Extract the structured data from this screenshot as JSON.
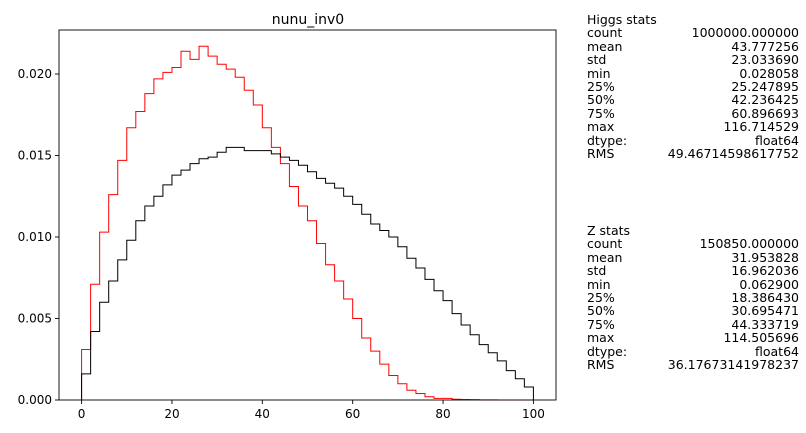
{
  "chart_data": {
    "type": "histogram",
    "title": "nunu_inv0",
    "xlim": [
      -5,
      105
    ],
    "ylim": [
      0,
      0.0227
    ],
    "xticks": [
      0,
      20,
      40,
      60,
      80,
      100
    ],
    "yticks": [
      0.0,
      0.005,
      0.01,
      0.015,
      0.02
    ],
    "ytick_labels": [
      "0.000",
      "0.005",
      "0.010",
      "0.015",
      "0.020"
    ],
    "bin_edges": [
      0,
      2,
      4,
      6,
      8,
      10,
      12,
      14,
      16,
      18,
      20,
      22,
      24,
      26,
      28,
      30,
      32,
      34,
      36,
      38,
      40,
      42,
      44,
      46,
      48,
      50,
      52,
      54,
      56,
      58,
      60,
      62,
      64,
      66,
      68,
      70,
      72,
      74,
      76,
      78,
      80,
      82,
      84,
      86,
      88,
      90,
      92,
      94,
      96,
      98,
      100
    ],
    "series": [
      {
        "color": "#ff0000",
        "values": [
          0.0031,
          0.0071,
          0.0103,
          0.0126,
          0.0147,
          0.0167,
          0.0177,
          0.0188,
          0.0197,
          0.0201,
          0.0204,
          0.0214,
          0.0209,
          0.0217,
          0.0211,
          0.0206,
          0.0203,
          0.0198,
          0.019,
          0.0181,
          0.0167,
          0.0155,
          0.0145,
          0.0131,
          0.0119,
          0.011,
          0.0096,
          0.0083,
          0.0073,
          0.0062,
          0.005,
          0.0038,
          0.003,
          0.0022,
          0.0015,
          0.001,
          0.0006,
          0.0004,
          0.0002,
          0.0001,
          0.0001,
          5e-05,
          3e-05,
          2e-05,
          1e-05,
          1e-05,
          0.0,
          0.0,
          0.0,
          0.0
        ]
      },
      {
        "color": "#000000",
        "values": [
          0.0016,
          0.0042,
          0.006,
          0.0073,
          0.0086,
          0.0098,
          0.011,
          0.0119,
          0.0125,
          0.0132,
          0.0138,
          0.0141,
          0.0145,
          0.0148,
          0.0149,
          0.0152,
          0.0155,
          0.0155,
          0.0153,
          0.0153,
          0.0153,
          0.0151,
          0.0149,
          0.0147,
          0.0144,
          0.014,
          0.0136,
          0.0133,
          0.013,
          0.0125,
          0.012,
          0.0114,
          0.0108,
          0.0104,
          0.01,
          0.0094,
          0.0087,
          0.0081,
          0.0074,
          0.0067,
          0.0061,
          0.0053,
          0.0046,
          0.004,
          0.0034,
          0.0029,
          0.0024,
          0.0018,
          0.0013,
          0.0008
        ]
      }
    ]
  },
  "stats": [
    {
      "title": "Higgs stats",
      "rows": [
        {
          "k": "count",
          "v": "1000000.000000"
        },
        {
          "k": "mean",
          "v": "43.777256"
        },
        {
          "k": "std",
          "v": "23.033690"
        },
        {
          "k": "min",
          "v": "0.028058"
        },
        {
          "k": "25%",
          "v": "25.247895"
        },
        {
          "k": "50%",
          "v": "42.236425"
        },
        {
          "k": "75%",
          "v": "60.896693"
        },
        {
          "k": "max",
          "v": "116.714529"
        },
        {
          "k": "dtype:",
          "v": "float64"
        },
        {
          "k": "RMS",
          "v": "49.46714598617752"
        }
      ]
    },
    {
      "title": "Z stats",
      "rows": [
        {
          "k": "count",
          "v": "150850.000000"
        },
        {
          "k": "mean",
          "v": "31.953828"
        },
        {
          "k": "std",
          "v": "16.962036"
        },
        {
          "k": "min",
          "v": "0.062900"
        },
        {
          "k": "25%",
          "v": "18.386430"
        },
        {
          "k": "50%",
          "v": "30.695471"
        },
        {
          "k": "75%",
          "v": "44.333719"
        },
        {
          "k": "max",
          "v": "114.505696"
        },
        {
          "k": "dtype:",
          "v": "float64"
        },
        {
          "k": "RMS",
          "v": "36.17673141978237"
        }
      ]
    }
  ]
}
